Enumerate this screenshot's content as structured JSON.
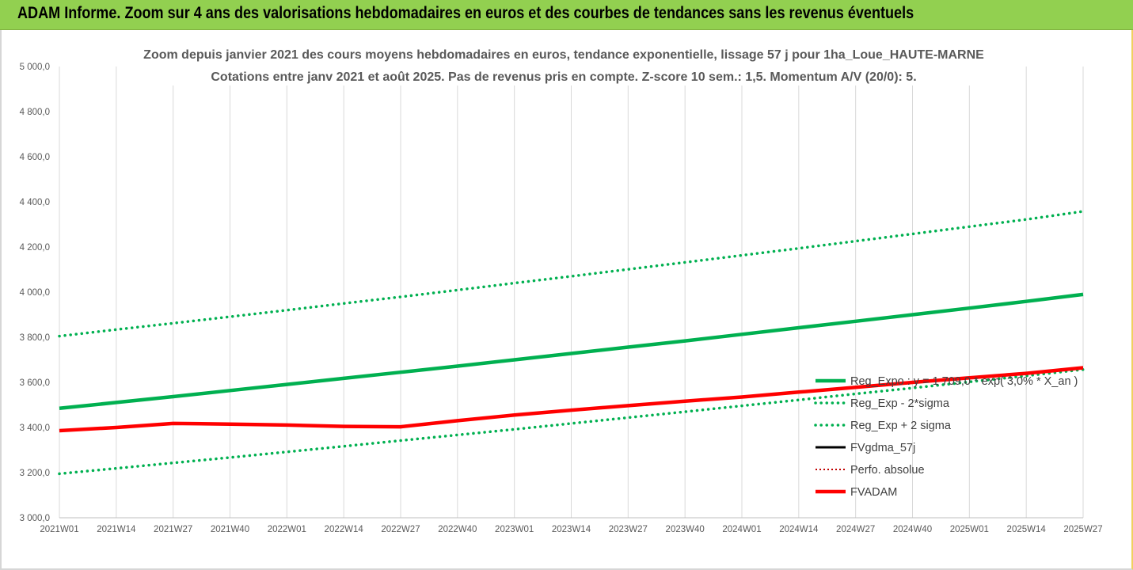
{
  "header": {
    "banner_title": "ADAM Informe. Zoom sur 4 ans des valorisations hebdomadaires en euros et des courbes de tendances sans les revenus éventuels"
  },
  "colors": {
    "banner_bg": "#92d050",
    "trend": "#00b050",
    "band": "#00b050",
    "fvgdma": "#000000",
    "perfo": "#c00000",
    "fvadam": "#ff0000",
    "grid": "#d9d9d9"
  },
  "chart_data": {
    "type": "line",
    "title": [
      "Zoom depuis janvier 2021 des cours moyens hebdomadaires en euros, tendance exponentielle, lissage 57 j pour 1ha_Loue_HAUTE-MARNE",
      "Cotations entre janv 2021 et août 2025.  Pas de revenus pris en compte. Z-score 10 sem.: 1,5. Momentum A/V (20/0): 5."
    ],
    "xlabel": "",
    "ylabel": "",
    "ylim": [
      3000,
      5000
    ],
    "yticks": [
      "5 000,0",
      "4 800,0",
      "4 600,0",
      "4 400,0",
      "4 200,0",
      "4 000,0",
      "3 800,0",
      "3 600,0",
      "3 400,0",
      "3 200,0",
      "3 000,0"
    ],
    "categories": [
      "2021W01",
      "2021W14",
      "2021W27",
      "2021W40",
      "2022W01",
      "2022W14",
      "2022W27",
      "2022W40",
      "2023W01",
      "2023W14",
      "2023W27",
      "2023W40",
      "2024W01",
      "2024W14",
      "2024W27",
      "2024W40",
      "2025W01",
      "2025W14",
      "2025W27"
    ],
    "x_grid": "vertical",
    "legend_position": "right",
    "series": [
      {
        "name": "Reg_Expo : y = 1 709,0 * exp( 3,0% * X_an )",
        "style": "solid-thick",
        "color": "#00b050",
        "values": [
          3485,
          3511,
          3537,
          3564,
          3591,
          3618,
          3645,
          3672,
          3700,
          3728,
          3756,
          3784,
          3813,
          3842,
          3871,
          3900,
          3929,
          3959,
          3990
        ]
      },
      {
        "name": "Reg_Exp - 2*sigma",
        "style": "dotted",
        "color": "#00b050",
        "values": [
          3195,
          3219,
          3243,
          3267,
          3292,
          3317,
          3342,
          3367,
          3392,
          3418,
          3444,
          3470,
          3496,
          3522,
          3549,
          3575,
          3602,
          3629,
          3657
        ]
      },
      {
        "name": "Reg_Exp + 2 sigma",
        "style": "dotted",
        "color": "#00b050",
        "values": [
          3805,
          3834,
          3862,
          3891,
          3920,
          3950,
          3979,
          4009,
          4040,
          4070,
          4101,
          4132,
          4163,
          4194,
          4226,
          4258,
          4290,
          4322,
          4358
        ]
      },
      {
        "name": "FVgdma_57j",
        "style": "solid",
        "color": "#000000",
        "values": [
          3386,
          3400,
          3418,
          3415,
          3411,
          3405,
          3405,
          3430,
          3455,
          3477,
          3497,
          3517,
          3535,
          3557,
          3578,
          3600,
          3620,
          3640,
          3665
        ]
      },
      {
        "name": "Perfo. absolue",
        "style": "dotted-thin",
        "color": "#c00000",
        "values": [
          3386,
          3400,
          3418,
          3415,
          3411,
          3405,
          3403,
          3430,
          3455,
          3477,
          3497,
          3517,
          3535,
          3557,
          3578,
          3600,
          3620,
          3640,
          3665
        ]
      },
      {
        "name": "FVADAM",
        "style": "solid-thick",
        "color": "#ff0000",
        "values": [
          3386,
          3400,
          3418,
          3415,
          3411,
          3405,
          3403,
          3430,
          3455,
          3477,
          3497,
          3517,
          3535,
          3557,
          3578,
          3600,
          3620,
          3640,
          3665
        ]
      }
    ]
  }
}
